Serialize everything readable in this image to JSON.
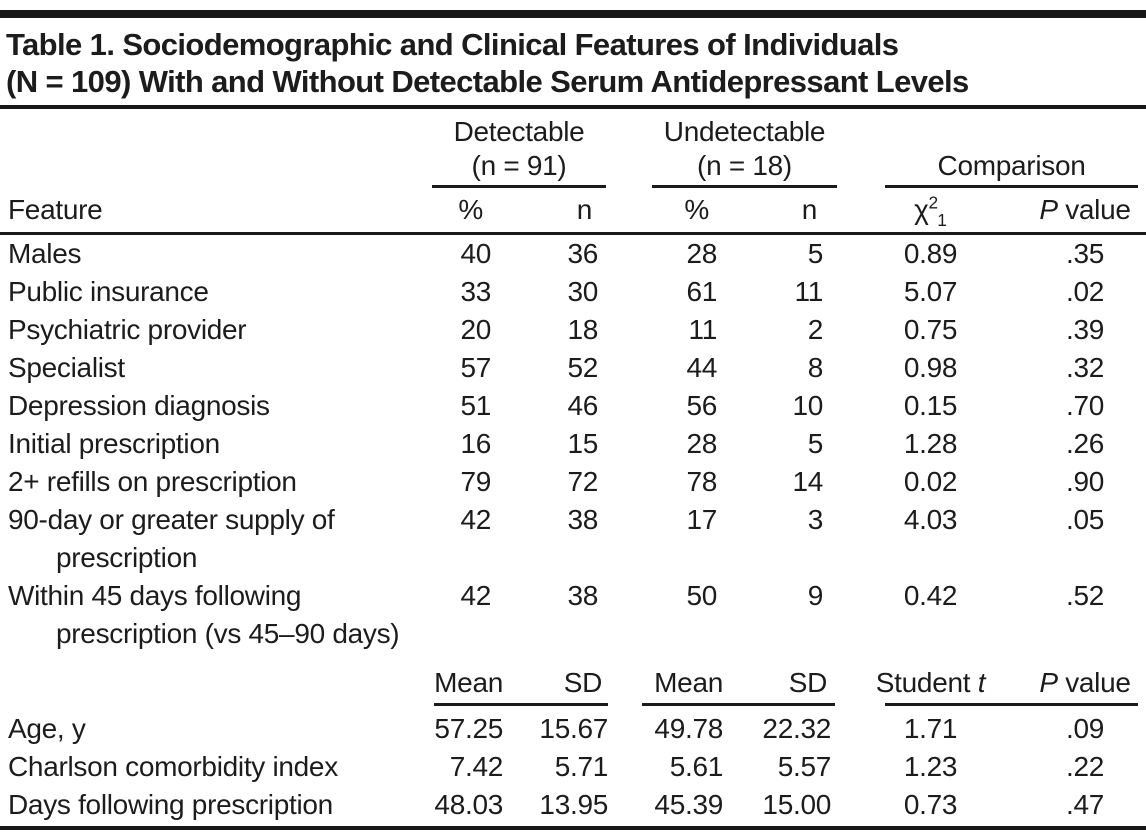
{
  "table": {
    "title_line1": "Table 1. Sociodemographic and Clinical Features of Individuals",
    "title_line2": "(N = 109) With and Without Detectable Serum Antidepressant Levels",
    "header": {
      "feature_label": "Feature",
      "groups": [
        {
          "line1": "Detectable",
          "line2": "(n = 91)"
        },
        {
          "line1": "Undetectable",
          "line2": "(n = 18)"
        },
        {
          "line1": "Comparison"
        }
      ],
      "stat_cols": [
        "%",
        "n",
        "%",
        "n"
      ],
      "chi_label": {
        "base": "χ",
        "sup": "2",
        "sub": "1"
      },
      "p_label": {
        "italic": "P",
        "rest": " value"
      }
    },
    "rows_pct": [
      {
        "feature": "Males",
        "values": [
          "40",
          "36",
          "28",
          "5",
          "0.89",
          ".35"
        ]
      },
      {
        "feature": "Public insurance",
        "values": [
          "33",
          "30",
          "61",
          "11",
          "5.07",
          ".02"
        ]
      },
      {
        "feature": "Psychiatric provider",
        "values": [
          "20",
          "18",
          "11",
          "2",
          "0.75",
          ".39"
        ]
      },
      {
        "feature": "Specialist",
        "values": [
          "57",
          "52",
          "44",
          "8",
          "0.98",
          ".32"
        ]
      },
      {
        "feature": "Depression diagnosis",
        "values": [
          "51",
          "46",
          "56",
          "10",
          "0.15",
          ".70"
        ]
      },
      {
        "feature": "Initial prescription",
        "values": [
          "16",
          "15",
          "28",
          "5",
          "1.28",
          ".26"
        ]
      },
      {
        "feature": "2+ refills on prescription",
        "values": [
          "79",
          "72",
          "78",
          "14",
          "0.02",
          ".90"
        ]
      },
      {
        "feature": "90-day or greater supply of prescription",
        "values": [
          "42",
          "38",
          "17",
          "3",
          "4.03",
          ".05"
        ]
      },
      {
        "feature": "Within 45 days following prescription (vs 45–90 days)",
        "values": [
          "42",
          "38",
          "50",
          "9",
          "0.42",
          ".52"
        ]
      }
    ],
    "subheader": {
      "stat_cols": [
        "Mean",
        "SD",
        "Mean",
        "SD"
      ],
      "t_label": {
        "rest": "Student ",
        "italic": "t"
      },
      "p_label": {
        "italic": "P",
        "rest": " value"
      }
    },
    "rows_mean": [
      {
        "feature": "Age, y",
        "values": [
          "57.25",
          "15.67",
          "49.78",
          "22.32",
          "1.71",
          ".09"
        ]
      },
      {
        "feature": "Charlson comorbidity index",
        "values": [
          "7.42",
          "5.71",
          "5.61",
          "5.57",
          "1.23",
          ".22"
        ]
      },
      {
        "feature": "Days following prescription",
        "values": [
          "48.03",
          "13.95",
          "45.39",
          "15.00",
          "0.73",
          ".47"
        ]
      }
    ]
  }
}
